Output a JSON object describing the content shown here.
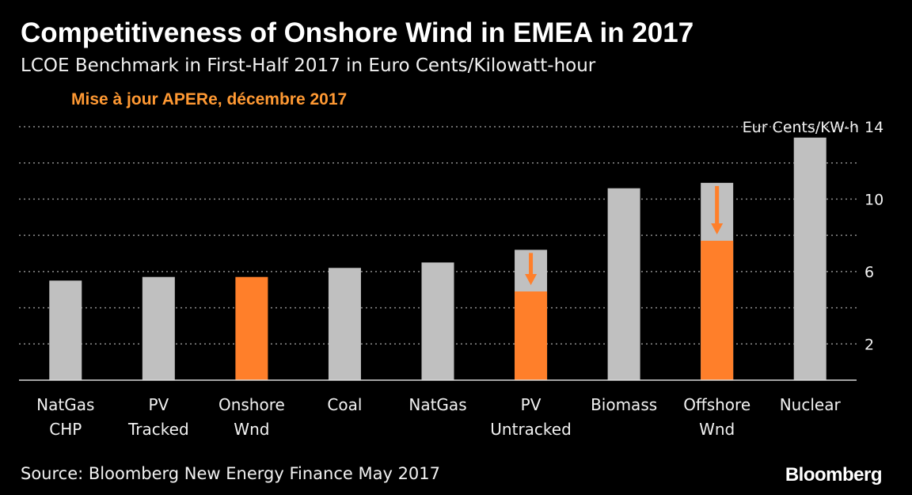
{
  "header": {
    "title": "Competitiveness of Onshore Wind in EMEA in 2017",
    "subtitle": "LCOE Benchmark in First-Half 2017 in Euro Cents/Kilowatt-hour",
    "annotation": "Mise à jour APERe, décembre 2017"
  },
  "footer": {
    "source": "Source: Bloomberg New Energy Finance May 2017",
    "brand": "Bloomberg"
  },
  "colors": {
    "background": "#000000",
    "bar_default": "#c0c0c0",
    "bar_highlight": "#ff7f2a",
    "annotation": "#ff9933",
    "gridline": "#8c8c8c"
  },
  "chart_data": {
    "type": "bar",
    "unit_label": "Eur Cents/KW-h",
    "categories": [
      [
        "NatGas",
        "CHP"
      ],
      [
        "PV",
        "Tracked"
      ],
      [
        "Onshore",
        "Wnd"
      ],
      [
        "Coal"
      ],
      [
        "NatGas"
      ],
      [
        "PV",
        "Untracked"
      ],
      [
        "Biomass"
      ],
      [
        "Offshore",
        "Wnd"
      ],
      [
        "Nuclear"
      ]
    ],
    "values": [
      5.5,
      5.7,
      5.7,
      6.2,
      6.5,
      7.2,
      10.6,
      10.9,
      13.4
    ],
    "highlight_values": [
      null,
      null,
      5.7,
      null,
      null,
      4.9,
      null,
      7.7,
      null
    ],
    "down_arrow": [
      false,
      false,
      false,
      false,
      false,
      true,
      false,
      true,
      false
    ],
    "yticks": [
      2,
      6,
      10,
      14
    ],
    "gridlines": [
      2,
      4,
      6,
      8,
      10,
      12,
      14
    ],
    "ylim": [
      0,
      14
    ],
    "y_axis_side": "right",
    "grid": true
  }
}
